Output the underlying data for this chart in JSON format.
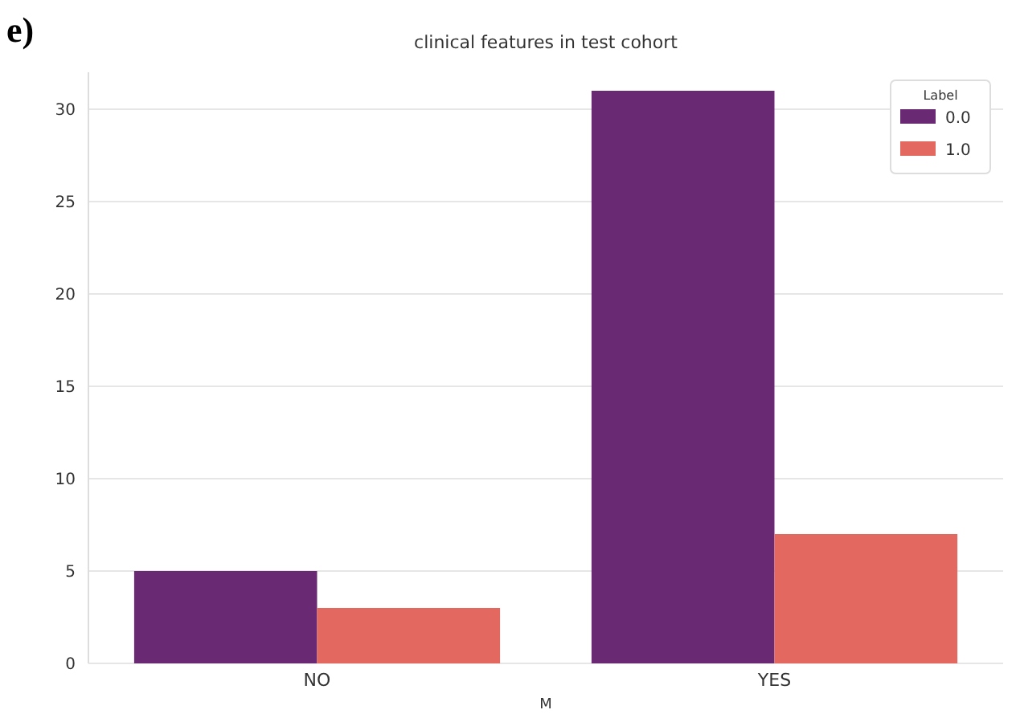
{
  "chart_data": {
    "type": "bar",
    "title": "clinical features in test cohort",
    "xlabel": "M",
    "legend_title": "Label",
    "annotations": [
      "e)"
    ],
    "categories": [
      "NO",
      "YES"
    ],
    "series": [
      {
        "name": "0.0",
        "color": "#6a2a73",
        "values": [
          5,
          31
        ]
      },
      {
        "name": "1.0",
        "color": "#e3685f",
        "values": [
          3,
          7
        ]
      }
    ],
    "ylim": [
      0,
      32
    ],
    "yticks": [
      0,
      5,
      10,
      15,
      20,
      25,
      30
    ],
    "grid": "y",
    "legend": "top right"
  }
}
